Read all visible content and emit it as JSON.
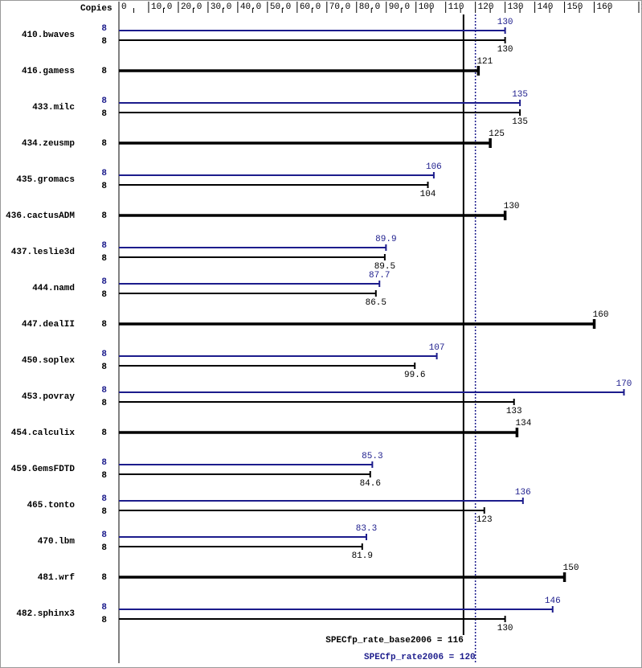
{
  "chart_data": {
    "type": "bar",
    "orientation": "horizontal",
    "axis_label": "Copies",
    "categories": [
      "410.bwaves",
      "416.gamess",
      "433.milc",
      "434.zeusmp",
      "435.gromacs",
      "436.cactusADM",
      "437.leslie3d",
      "444.namd",
      "447.dealII",
      "450.soplex",
      "453.povray",
      "454.calculix",
      "459.GemsFDTD",
      "465.tonto",
      "470.lbm",
      "481.wrf",
      "482.sphinx3"
    ],
    "series": [
      {
        "color": "#1c1c8c",
        "values": [
          130,
          null,
          135,
          null,
          106,
          null,
          89.9,
          87.7,
          null,
          107,
          170,
          null,
          85.3,
          136,
          83.3,
          null,
          146
        ],
        "copies": [
          8,
          null,
          8,
          null,
          8,
          null,
          8,
          8,
          null,
          8,
          8,
          null,
          8,
          8,
          8,
          null,
          8
        ]
      },
      {
        "color": "#000000",
        "values": [
          130,
          121,
          135,
          125,
          104,
          130,
          89.5,
          86.5,
          160,
          99.6,
          133,
          134,
          84.6,
          123,
          81.9,
          150,
          130
        ],
        "copies": [
          8,
          8,
          8,
          8,
          8,
          8,
          8,
          8,
          8,
          8,
          8,
          8,
          8,
          8,
          8,
          8,
          8
        ]
      }
    ],
    "xlim": [
      0,
      175
    ],
    "xticks": [
      0,
      {
        "value": 10,
        "label": "10.0"
      },
      {
        "value": 20,
        "label": "20.0"
      },
      {
        "value": 30,
        "label": "30.0"
      },
      {
        "value": 40,
        "label": "40.0"
      },
      {
        "value": 50,
        "label": "50.0"
      },
      {
        "value": 60,
        "label": "60.0"
      },
      {
        "value": 70,
        "label": "70.0"
      },
      {
        "value": 80,
        "label": "80.0"
      },
      {
        "value": 90,
        "label": "90.0"
      },
      100,
      110,
      120,
      130,
      140,
      150,
      160,
      175
    ],
    "reference_lines": [
      {
        "label": "SPECfp_rate_base2006 = 116",
        "value": 116,
        "color": "#000000",
        "style": "solid"
      },
      {
        "label": "SPECfp_rate2006 = 120",
        "value": 120,
        "color": "#1c1c8c",
        "style": "dotted"
      }
    ]
  }
}
